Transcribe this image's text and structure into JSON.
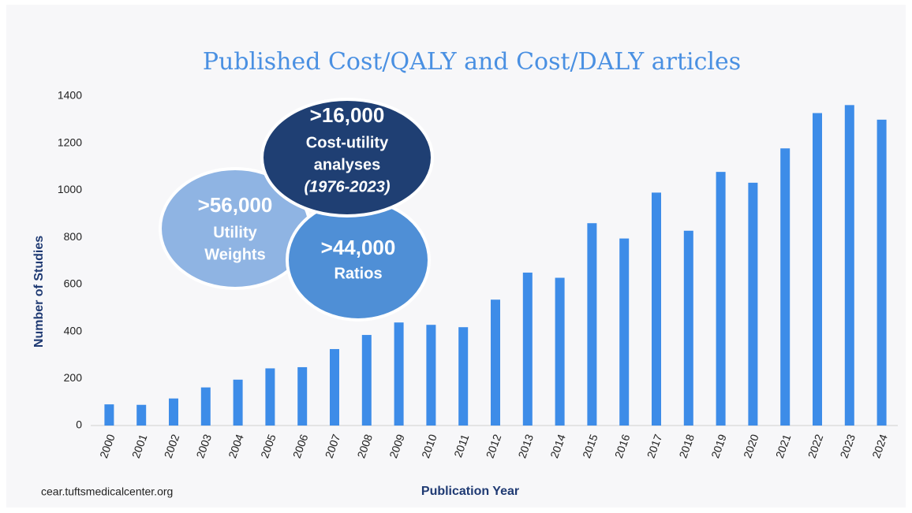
{
  "chart_data": {
    "type": "bar",
    "title": "Published Cost/QALY and Cost/DALY articles",
    "xlabel": "Publication Year",
    "ylabel": "Number of Studies",
    "source": "cear.tuftsmedicalcenter.org",
    "categories": [
      "2000",
      "2001",
      "2002",
      "2003",
      "2004",
      "2005",
      "2006",
      "2007",
      "2008",
      "2009",
      "2010",
      "2011",
      "2012",
      "2013",
      "2014",
      "2015",
      "2016",
      "2017",
      "2018",
      "2019",
      "2020",
      "2021",
      "2022",
      "2023",
      "2024"
    ],
    "values": [
      90,
      88,
      115,
      162,
      195,
      243,
      248,
      325,
      385,
      438,
      428,
      418,
      535,
      650,
      628,
      860,
      795,
      990,
      828,
      1078,
      1032,
      1178,
      1328,
      1362,
      1300
    ],
    "color": "#3d8ce8",
    "ylim": [
      0,
      1400
    ],
    "yticks": [
      0,
      200,
      400,
      600,
      800,
      1000,
      1200,
      1400
    ],
    "grid": false,
    "annotations": [
      {
        "lines": [
          ">56,000",
          "Utility",
          "Weights"
        ]
      },
      {
        "lines": [
          ">44,000",
          "Ratios"
        ]
      },
      {
        "lines": [
          ">16,000",
          "Cost-utility",
          "analyses",
          "(1976-2023)"
        ]
      }
    ]
  }
}
